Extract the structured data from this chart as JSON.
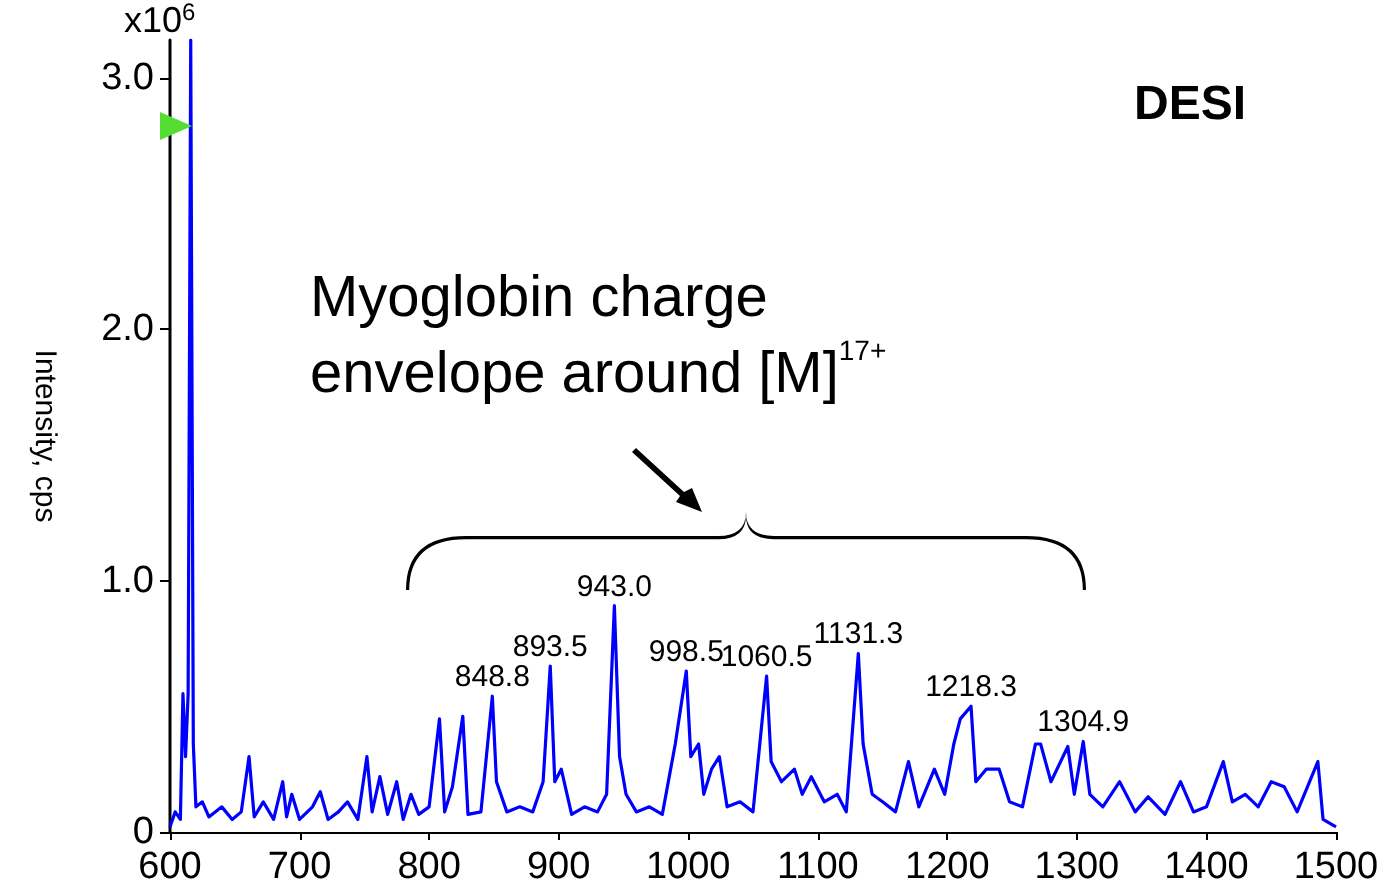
{
  "chart_data": {
    "type": "line",
    "ylabel": "Intensity, cps",
    "xlim": [
      600,
      1500
    ],
    "xticks": [
      600,
      700,
      800,
      900,
      1000,
      1100,
      1200,
      1300,
      1400,
      1500
    ],
    "ylim": [
      0,
      3.15
    ],
    "yticks": [
      0,
      {
        "value": 1,
        "label": "1.0"
      },
      {
        "value": 2,
        "label": "2.0"
      },
      {
        "value": 3,
        "label": "3.0"
      }
    ],
    "grid": false,
    "marker": "none",
    "line_style": "solid",
    "series": [
      {
        "color": "#0000ff",
        "x": [
          600,
          604,
          608,
          610,
          612,
          614,
          616,
          618,
          620,
          625,
          630,
          640,
          648,
          655,
          661,
          665,
          672,
          680,
          687,
          690,
          694,
          700,
          710,
          716,
          722,
          730,
          737,
          745,
          752,
          756,
          762,
          768,
          775,
          780,
          786,
          792,
          800,
          808,
          812,
          818,
          826,
          830,
          840,
          848.8,
          852,
          860,
          870,
          880,
          888,
          893.5,
          897,
          902,
          910,
          920,
          930,
          937,
          943,
          947,
          952,
          960,
          970,
          980,
          990,
          998.5,
          1002,
          1008,
          1012,
          1018,
          1024,
          1030,
          1040,
          1050,
          1060.5,
          1064,
          1072,
          1082,
          1088,
          1095,
          1105,
          1115,
          1122,
          1131.3,
          1135,
          1142,
          1150,
          1160,
          1170,
          1178,
          1190,
          1198,
          1205,
          1210,
          1218.3,
          1222,
          1230,
          1240,
          1248,
          1258,
          1268,
          1272,
          1280,
          1293,
          1298,
          1304.9,
          1310,
          1320,
          1333,
          1345,
          1355,
          1368,
          1380,
          1390,
          1400,
          1413,
          1420,
          1430,
          1440,
          1450,
          1460,
          1470,
          1486,
          1490,
          1500
        ],
        "values": [
          0.02,
          0.08,
          0.05,
          0.55,
          0.3,
          0.55,
          3.15,
          0.35,
          0.1,
          0.12,
          0.06,
          0.1,
          0.05,
          0.08,
          0.3,
          0.06,
          0.12,
          0.05,
          0.2,
          0.06,
          0.15,
          0.05,
          0.1,
          0.16,
          0.05,
          0.08,
          0.12,
          0.05,
          0.3,
          0.08,
          0.22,
          0.07,
          0.2,
          0.05,
          0.15,
          0.07,
          0.1,
          0.45,
          0.08,
          0.18,
          0.46,
          0.07,
          0.08,
          0.54,
          0.2,
          0.08,
          0.1,
          0.08,
          0.2,
          0.66,
          0.2,
          0.25,
          0.07,
          0.1,
          0.08,
          0.15,
          0.9,
          0.3,
          0.15,
          0.08,
          0.1,
          0.07,
          0.35,
          0.64,
          0.3,
          0.35,
          0.15,
          0.25,
          0.3,
          0.1,
          0.12,
          0.08,
          0.62,
          0.28,
          0.2,
          0.25,
          0.15,
          0.22,
          0.12,
          0.15,
          0.08,
          0.71,
          0.35,
          0.15,
          0.12,
          0.08,
          0.28,
          0.1,
          0.25,
          0.15,
          0.35,
          0.45,
          0.5,
          0.2,
          0.25,
          0.25,
          0.12,
          0.1,
          0.35,
          0.35,
          0.2,
          0.34,
          0.15,
          0.36,
          0.15,
          0.1,
          0.2,
          0.08,
          0.14,
          0.07,
          0.2,
          0.08,
          0.1,
          0.28,
          0.12,
          0.15,
          0.1,
          0.2,
          0.18,
          0.08,
          0.28,
          0.05,
          0.02
        ]
      }
    ],
    "annotations": [
      "DESI",
      "x10$^{6}$",
      "Myoglobin charge\nenvelope around [M]$^{17+}$",
      {
        "text": "848.8",
        "x": 848.8,
        "y": 0.54
      },
      {
        "text": "893.5",
        "x": 893.5,
        "y": 0.66
      },
      {
        "text": "943.0",
        "x": 943,
        "y": 0.9
      },
      {
        "text": "998.5",
        "x": 998.5,
        "y": 0.64
      },
      {
        "text": "1060.5",
        "x": 1060.5,
        "y": 0.62
      },
      {
        "text": "1131.3",
        "x": 1131.3,
        "y": 0.71
      },
      {
        "text": "1218.3",
        "x": 1218.3,
        "y": 0.5
      },
      {
        "text": "1304.9",
        "x": 1304.9,
        "y": 0.36
      }
    ]
  }
}
